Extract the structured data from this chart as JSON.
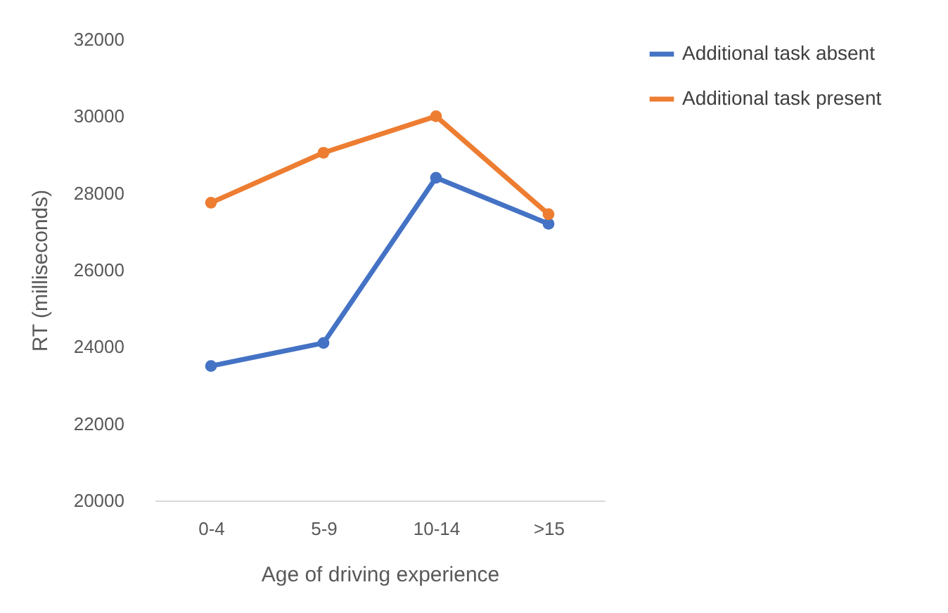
{
  "chart_data": {
    "type": "line",
    "xlabel": "Age of driving experience",
    "ylabel": "RT (milliseconds)",
    "categories": [
      "0-4",
      "5-9",
      "10-14",
      ">15"
    ],
    "series": [
      {
        "name": "Additional task absent",
        "color": "#4472c4",
        "values": [
          23500,
          24100,
          28400,
          27200
        ]
      },
      {
        "name": "Additional task present",
        "color": "#ed7d31",
        "values": [
          27750,
          29050,
          30000,
          27450
        ]
      }
    ],
    "ylim": [
      20000,
      32000
    ],
    "yticks": [
      20000,
      22000,
      24000,
      26000,
      28000,
      30000,
      32000
    ],
    "grid": false,
    "legend": "right",
    "marker": "circle",
    "line_style": "solid"
  }
}
